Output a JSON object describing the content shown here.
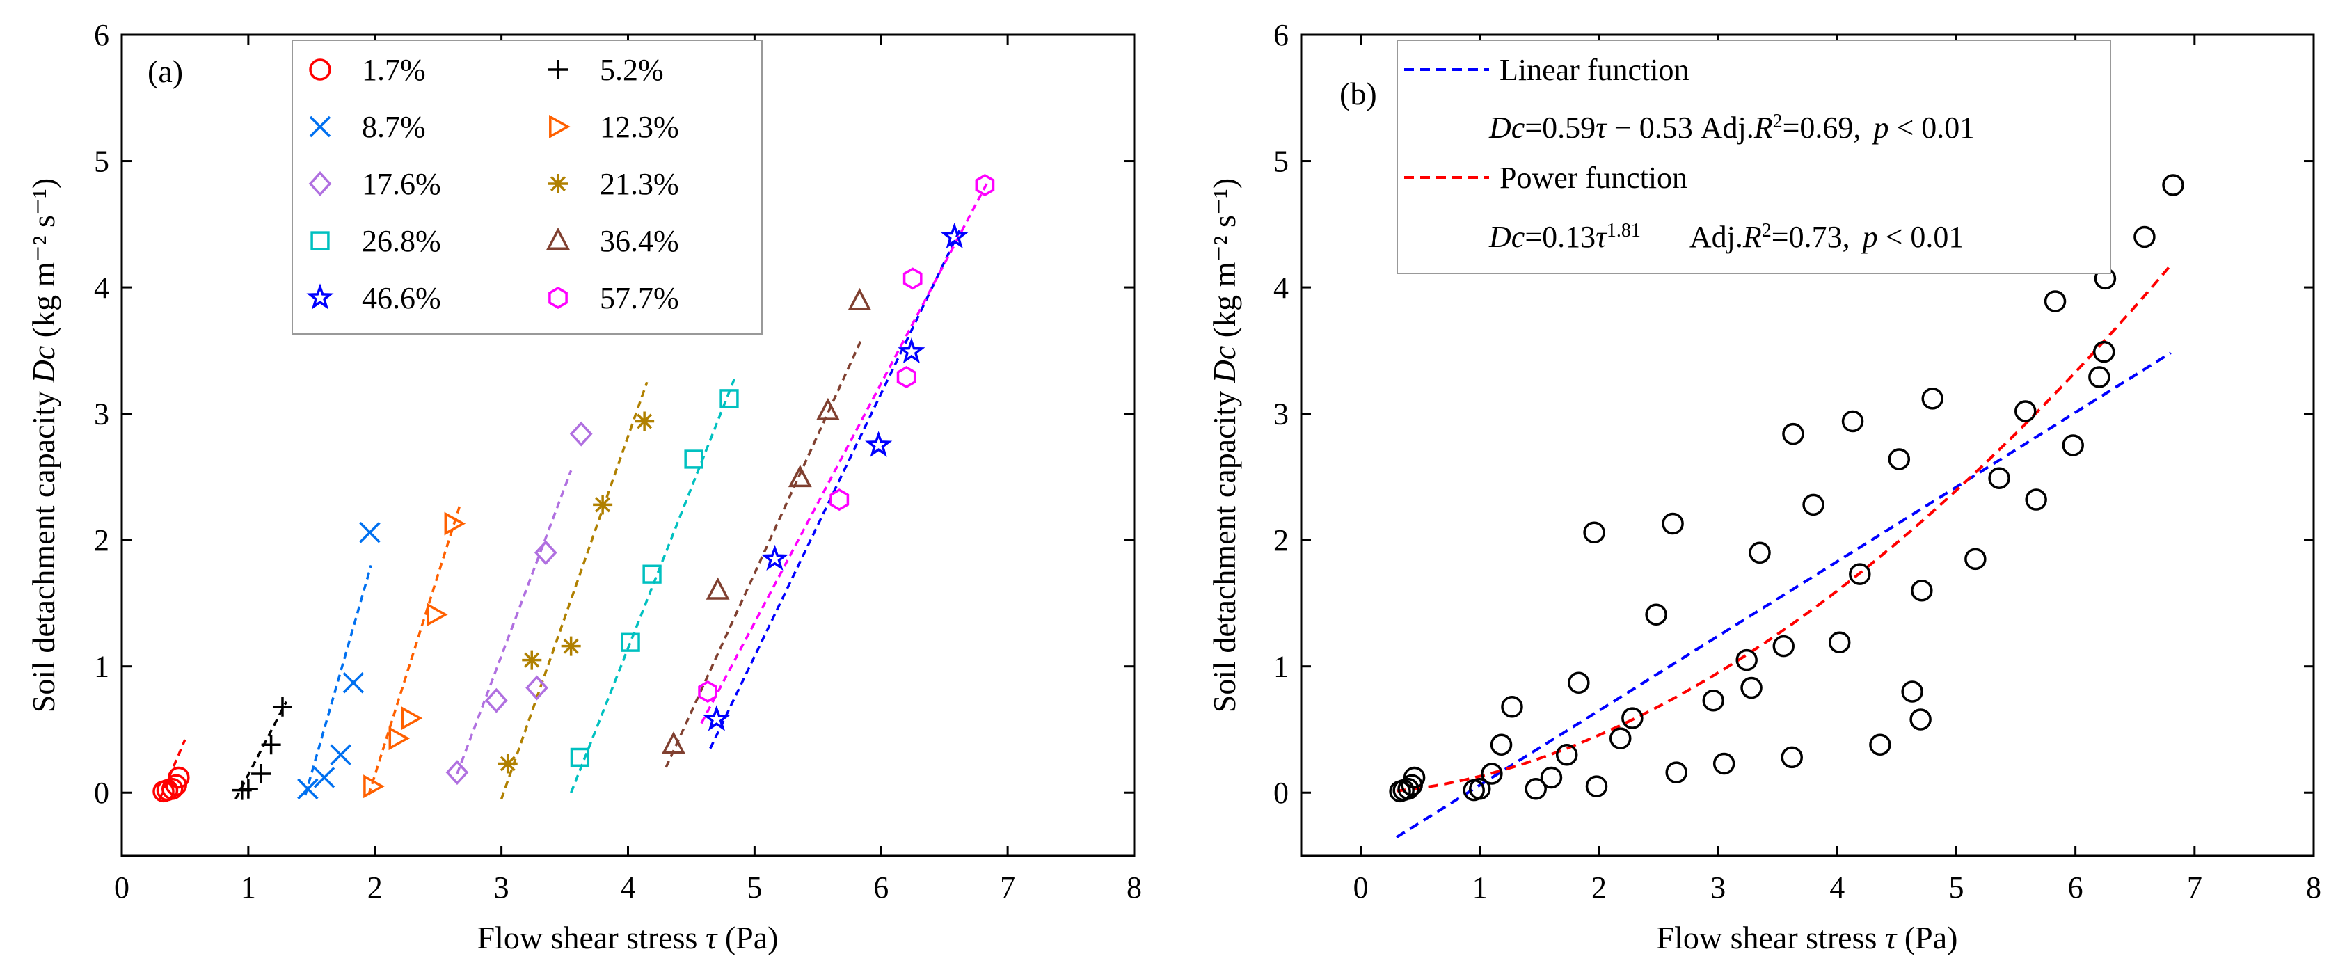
{
  "chart_data": [
    {
      "type": "scatter",
      "panel_label": "(a)",
      "xlabel": {
        "prefix": "Flow shear stress ",
        "symbol": "τ",
        "suffix": " (Pa)"
      },
      "ylabel": {
        "prefix": "Soil detachment capacity ",
        "symbol": "Dc",
        "unit": " (kg m⁻² s⁻¹)"
      },
      "xlim": [
        0,
        8
      ],
      "ylim": [
        -0.5,
        6
      ],
      "xticks": [
        "0",
        "1",
        "2",
        "3",
        "4",
        "5",
        "6",
        "7",
        "8"
      ],
      "yticks": [
        "0",
        "1",
        "2",
        "3",
        "4",
        "5",
        "6"
      ],
      "legend_position": "top-center",
      "series": [
        {
          "name": "1.7%",
          "marker": "circle",
          "color": "#ff0000",
          "x": [
            0.33,
            0.36,
            0.4,
            0.43,
            0.45
          ],
          "y": [
            0.01,
            0.02,
            0.03,
            0.06,
            0.12
          ],
          "fit": [
            [
              0.3,
              -0.05
            ],
            [
              0.5,
              0.42
            ]
          ]
        },
        {
          "name": "5.2%",
          "marker": "plus",
          "color": "#000000",
          "x": [
            0.95,
            1.0,
            1.1,
            1.18,
            1.27
          ],
          "y": [
            0.02,
            0.03,
            0.15,
            0.38,
            0.68
          ],
          "fit": [
            [
              0.9,
              -0.05
            ],
            [
              1.3,
              0.72
            ]
          ]
        },
        {
          "name": "8.7%",
          "marker": "x",
          "color": "#0070f0",
          "x": [
            1.47,
            1.6,
            1.73,
            1.83,
            1.96
          ],
          "y": [
            0.03,
            0.12,
            0.3,
            0.87,
            2.06
          ],
          "fit": [
            [
              1.45,
              -0.02
            ],
            [
              1.97,
              1.8
            ]
          ]
        },
        {
          "name": "12.3%",
          "marker": "triangle-right",
          "color": "#ff6000",
          "x": [
            1.98,
            2.18,
            2.28,
            2.48,
            2.62
          ],
          "y": [
            0.05,
            0.43,
            0.59,
            1.41,
            2.13
          ],
          "fit": [
            [
              1.95,
              -0.02
            ],
            [
              2.67,
              2.27
            ]
          ]
        },
        {
          "name": "17.6%",
          "marker": "diamond",
          "color": "#b070e0",
          "x": [
            2.65,
            2.96,
            3.28,
            3.35,
            3.63
          ],
          "y": [
            0.16,
            0.73,
            0.83,
            1.9,
            2.84
          ],
          "fit": [
            [
              2.65,
              0.15
            ],
            [
              3.55,
              2.55
            ]
          ]
        },
        {
          "name": "21.3%",
          "marker": "asterisk",
          "color": "#b08000",
          "x": [
            3.05,
            3.24,
            3.55,
            3.8,
            4.13
          ],
          "y": [
            0.23,
            1.05,
            1.16,
            2.28,
            2.94
          ],
          "fit": [
            [
              3.0,
              -0.05
            ],
            [
              4.15,
              3.25
            ]
          ]
        },
        {
          "name": "26.8%",
          "marker": "square",
          "color": "#00c0c0",
          "x": [
            3.62,
            4.02,
            4.19,
            4.52,
            4.8
          ],
          "y": [
            0.28,
            1.19,
            1.73,
            2.64,
            3.12
          ],
          "fit": [
            [
              3.55,
              0.0
            ],
            [
              4.85,
              3.3
            ]
          ]
        },
        {
          "name": "36.4%",
          "marker": "triangle-up",
          "color": "#804030",
          "x": [
            4.36,
            4.71,
            5.36,
            5.58,
            5.83
          ],
          "y": [
            0.38,
            1.6,
            2.49,
            3.02,
            3.89
          ],
          "fit": [
            [
              4.3,
              0.2
            ],
            [
              5.85,
              3.6
            ]
          ]
        },
        {
          "name": "46.6%",
          "marker": "star",
          "color": "#0000ff",
          "x": [
            4.7,
            5.16,
            5.98,
            6.24,
            6.58
          ],
          "y": [
            0.58,
            1.85,
            2.75,
            3.49,
            4.4
          ],
          "fit": [
            [
              4.65,
              0.35
            ],
            [
              6.62,
              4.45
            ]
          ]
        },
        {
          "name": "57.7%",
          "marker": "hexagon",
          "color": "#ff00ff",
          "x": [
            4.63,
            5.67,
            6.2,
            6.25,
            6.82
          ],
          "y": [
            0.8,
            2.32,
            3.29,
            4.07,
            4.81
          ],
          "fit": [
            [
              4.58,
              0.55
            ],
            [
              6.85,
              4.85
            ]
          ]
        }
      ]
    },
    {
      "type": "scatter",
      "panel_label": "(b)",
      "xlabel": {
        "prefix": "Flow shear stress ",
        "symbol": "τ",
        "suffix": " (Pa)"
      },
      "ylabel": {
        "prefix": "Soil detachment capacity ",
        "symbol": "Dc",
        "unit": " (kg m⁻² s⁻¹)"
      },
      "xlim": [
        -0.5,
        8
      ],
      "ylim": [
        -0.5,
        6
      ],
      "xticks": [
        "0",
        "1",
        "2",
        "3",
        "4",
        "5",
        "6",
        "7",
        "8"
      ],
      "yticks": [
        "0",
        "1",
        "2",
        "3",
        "4",
        "5",
        "6"
      ],
      "legend_position": "top-left",
      "points": {
        "x": [
          0.33,
          0.36,
          0.4,
          0.43,
          0.45,
          0.95,
          1.0,
          1.1,
          1.18,
          1.27,
          1.47,
          1.6,
          1.73,
          1.83,
          1.96,
          1.98,
          2.18,
          2.28,
          2.48,
          2.62,
          2.65,
          2.96,
          3.28,
          3.35,
          3.63,
          3.05,
          3.24,
          3.55,
          3.8,
          4.13,
          3.62,
          4.02,
          4.19,
          4.52,
          4.8,
          4.36,
          4.71,
          5.36,
          5.58,
          5.83,
          4.7,
          5.16,
          5.98,
          6.24,
          6.58,
          4.63,
          5.67,
          6.2,
          6.25,
          6.82
        ],
        "y": [
          0.01,
          0.02,
          0.03,
          0.06,
          0.12,
          0.02,
          0.03,
          0.15,
          0.38,
          0.68,
          0.03,
          0.12,
          0.3,
          0.87,
          2.06,
          0.05,
          0.43,
          0.59,
          1.41,
          2.13,
          0.16,
          0.73,
          0.83,
          1.9,
          2.84,
          0.23,
          1.05,
          1.16,
          2.28,
          2.94,
          0.28,
          1.19,
          1.73,
          2.64,
          3.12,
          0.38,
          1.6,
          2.49,
          3.02,
          3.89,
          0.58,
          1.85,
          2.75,
          3.49,
          4.4,
          0.8,
          2.32,
          3.29,
          4.07,
          4.81
        ]
      },
      "fits": [
        {
          "name": "Linear function",
          "color": "#0000ff",
          "kind": "linear",
          "a": 0.59,
          "b": -0.53,
          "range": [
            0.3,
            6.8
          ],
          "eq": {
            "lhs": "Dc",
            "rhs": "=0.59",
            "tau": "τ",
            "rest": " − 0.53",
            "adj": " Adj.",
            "r": "R",
            "r2sup": "2",
            "r2val": "=0.69,",
            "p": "p",
            "pval": " < 0.01"
          }
        },
        {
          "name": "Power function",
          "color": "#ff0000",
          "kind": "power",
          "a": 0.13,
          "b": 1.81,
          "range": [
            0.3,
            6.8
          ],
          "eq": {
            "lhs": "Dc",
            "rhs": "=0.13",
            "tau": "τ",
            "exp": "1.81",
            "adj": "Adj.",
            "r": "R",
            "r2sup": "2",
            "r2val": "=0.73,",
            "p": "p",
            "pval": " < 0.01"
          }
        }
      ]
    }
  ]
}
